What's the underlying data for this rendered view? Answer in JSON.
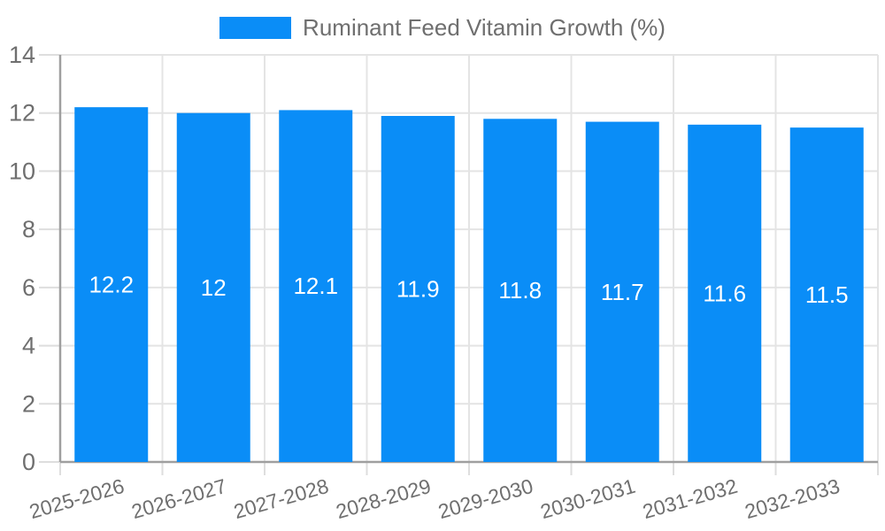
{
  "legend": {
    "label": "Ruminant Feed Vitamin Growth (%)"
  },
  "colors": {
    "bar": "#0a8df7",
    "grid": "#e4e4e4",
    "tick": "#dedede",
    "axis": "#9f9f9f",
    "text": "#6f6f6f",
    "value_label": "#ffffff",
    "background": "#ffffff"
  },
  "chart_data": {
    "type": "bar",
    "title": "",
    "xlabel": "",
    "ylabel": "",
    "series_name": "Ruminant Feed Vitamin Growth (%)",
    "categories": [
      "2025-2026",
      "2026-2027",
      "2027-2028",
      "2028-2029",
      "2029-2030",
      "2030-2031",
      "2031-2032",
      "2032-2033"
    ],
    "values": [
      12.2,
      12,
      12.1,
      11.9,
      11.8,
      11.7,
      11.6,
      11.5
    ],
    "value_labels": [
      "12.2",
      "12",
      "12.1",
      "11.9",
      "11.8",
      "11.7",
      "11.6",
      "11.5"
    ],
    "ylim": [
      0,
      14
    ],
    "yticks": [
      0,
      2,
      4,
      6,
      8,
      10,
      12,
      14
    ],
    "grid": true,
    "legend_position": "top",
    "x_label_rotation_deg": -16
  }
}
